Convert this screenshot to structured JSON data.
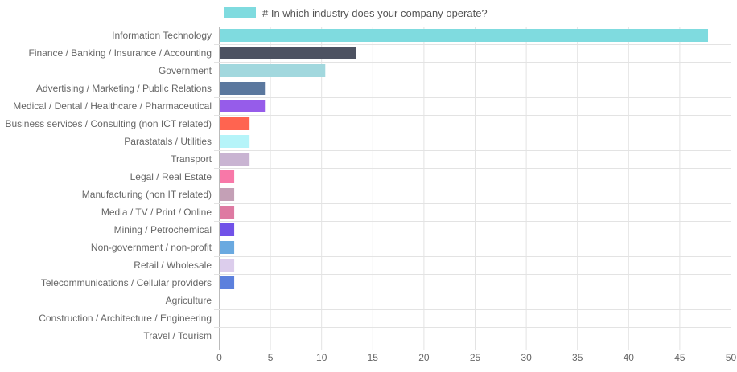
{
  "chart_data": {
    "type": "bar",
    "orientation": "horizontal",
    "legend": {
      "label": "# In which industry does your company operate?",
      "color": "#7fdbdf",
      "placement": "top"
    },
    "categories": [
      "Information Technology",
      "Finance / Banking / Insurance / Accounting",
      "Government",
      "Advertising / Marketing / Public Relations",
      "Medical / Dental / Healthcare / Pharmaceutical",
      "Business services / Consulting (non ICT related)",
      "Parastatals / Utilities",
      "Transport",
      "Legal / Real Estate",
      "Manufacturing (non IT related)",
      "Media / TV / Print / Online",
      "Mining / Petrochemical",
      "Non-government / non-profit",
      "Retail / Wholesale",
      "Telecommunications / Cellular providers",
      "Agriculture",
      "Construction / Architecture / Engineering",
      "Travel / Tourism"
    ],
    "values": [
      47.8,
      13.4,
      10.4,
      4.5,
      4.5,
      3.0,
      3.0,
      3.0,
      1.5,
      1.5,
      1.5,
      1.5,
      1.5,
      1.5,
      1.5,
      0,
      0,
      0
    ],
    "colors": [
      "#7fdbdf",
      "#4d5261",
      "#a2d8de",
      "#5b789e",
      "#965cea",
      "#ff6450",
      "#b5f4f9",
      "#c9b4d2",
      "#f878a8",
      "#c4a0b6",
      "#de7aa2",
      "#7152e8",
      "#6aa9e0",
      "#dccdec",
      "#5c80dd",
      "#cccccc",
      "#cccccc",
      "#cccccc"
    ],
    "xlim": [
      0,
      50
    ],
    "xticks": [
      "0",
      "5",
      "10",
      "15",
      "20",
      "25",
      "30",
      "35",
      "40",
      "45",
      "50"
    ],
    "grid": true,
    "xlabel": "",
    "ylabel": ""
  }
}
